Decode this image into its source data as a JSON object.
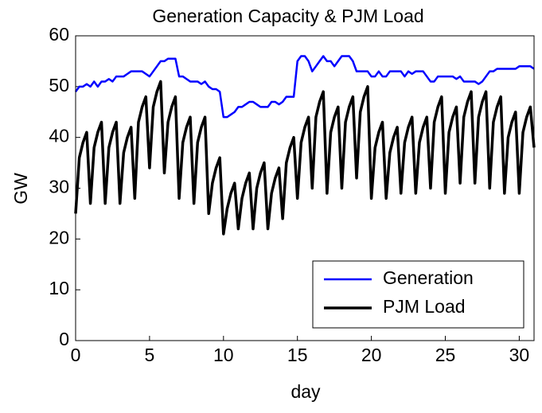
{
  "chart_data": {
    "type": "line",
    "title": "Generation Capacity & PJM Load",
    "xlabel": "day",
    "ylabel": "GW",
    "xlim": [
      0,
      31
    ],
    "ylim": [
      0,
      60
    ],
    "xticks": [
      0,
      5,
      10,
      15,
      20,
      25,
      30
    ],
    "yticks": [
      0,
      10,
      20,
      30,
      40,
      50,
      60
    ],
    "grid": false,
    "legend": "lower right",
    "x": [
      0,
      0.25,
      0.5,
      0.75,
      1,
      1.25,
      1.5,
      1.75,
      2,
      2.25,
      2.5,
      2.75,
      3,
      3.25,
      3.5,
      3.75,
      4,
      4.25,
      4.5,
      4.75,
      5,
      5.25,
      5.5,
      5.75,
      6,
      6.25,
      6.5,
      6.75,
      7,
      7.25,
      7.5,
      7.75,
      8,
      8.25,
      8.5,
      8.75,
      9,
      9.25,
      9.5,
      9.75,
      10,
      10.25,
      10.5,
      10.75,
      11,
      11.25,
      11.5,
      11.75,
      12,
      12.25,
      12.5,
      12.75,
      13,
      13.25,
      13.5,
      13.75,
      14,
      14.25,
      14.5,
      14.75,
      15,
      15.25,
      15.5,
      15.75,
      16,
      16.25,
      16.5,
      16.75,
      17,
      17.25,
      17.5,
      17.75,
      18,
      18.25,
      18.5,
      18.75,
      19,
      19.25,
      19.5,
      19.75,
      20,
      20.25,
      20.5,
      20.75,
      21,
      21.25,
      21.5,
      21.75,
      22,
      22.25,
      22.5,
      22.75,
      23,
      23.25,
      23.5,
      23.75,
      24,
      24.25,
      24.5,
      24.75,
      25,
      25.25,
      25.5,
      25.75,
      26,
      26.25,
      26.5,
      26.75,
      27,
      27.25,
      27.5,
      27.75,
      28,
      28.25,
      28.5,
      28.75,
      29,
      29.25,
      29.5,
      29.75,
      30,
      30.25,
      30.5,
      30.75,
      31
    ],
    "series": [
      {
        "name": "Generation",
        "color": "#0000ff",
        "width": 2.5,
        "values": [
          49,
          50,
          50,
          50.5,
          50,
          51,
          50,
          51,
          51,
          51.5,
          51,
          52,
          52,
          52,
          52.5,
          53,
          53,
          53,
          53,
          52.5,
          52,
          53,
          54,
          55,
          55,
          55.5,
          55.5,
          55.5,
          52,
          52,
          51.5,
          51,
          51,
          51,
          50.5,
          51,
          50,
          49.5,
          49.5,
          49,
          44,
          44,
          44.5,
          45,
          46,
          46,
          46.5,
          47,
          47,
          46.5,
          46,
          46,
          46,
          47,
          47,
          46.5,
          47,
          48,
          48,
          48,
          55,
          56,
          56,
          55,
          53,
          54,
          55,
          56,
          55,
          55,
          54,
          55,
          56,
          56,
          56,
          55,
          53,
          53,
          53,
          53,
          52,
          52,
          53,
          52,
          52,
          53,
          53,
          53,
          53,
          52,
          53,
          52.5,
          53,
          53,
          53,
          52,
          51,
          51,
          52,
          52,
          52,
          52,
          52,
          51.5,
          52,
          51,
          51,
          51,
          51,
          50.5,
          51,
          52,
          53,
          53,
          53.5,
          53.5,
          53.5,
          53.5,
          53.5,
          53.5,
          54,
          54,
          54,
          54,
          53.5
        ]
      },
      {
        "name": "PJM Load",
        "color": "#000000",
        "width": 3.5,
        "values": [
          25,
          36,
          39,
          41,
          27,
          38,
          41,
          43,
          27,
          38,
          41,
          43,
          27,
          37,
          40,
          42,
          28,
          43,
          46,
          48,
          34,
          46,
          49,
          51,
          33,
          43,
          46,
          48,
          28,
          39,
          42,
          44,
          27,
          39,
          42,
          44,
          25,
          31,
          34,
          36,
          21,
          26,
          29,
          31,
          22,
          28,
          31,
          33,
          22,
          30,
          33,
          35,
          22,
          29,
          32,
          34,
          24,
          35,
          38,
          40,
          28,
          39,
          42,
          44,
          30,
          44,
          47,
          49,
          29,
          41,
          44,
          46,
          30,
          43,
          46,
          48,
          32,
          45,
          48,
          50,
          28,
          38,
          41,
          43,
          28,
          37,
          40,
          42,
          29,
          39,
          42,
          44,
          29,
          39,
          42,
          44,
          30,
          43,
          46,
          48,
          29,
          41,
          44,
          46,
          31,
          44,
          47,
          49,
          31,
          44,
          47,
          49,
          30,
          43,
          46,
          48,
          29,
          40,
          43,
          45,
          29,
          41,
          44,
          46,
          38
        ]
      }
    ]
  }
}
